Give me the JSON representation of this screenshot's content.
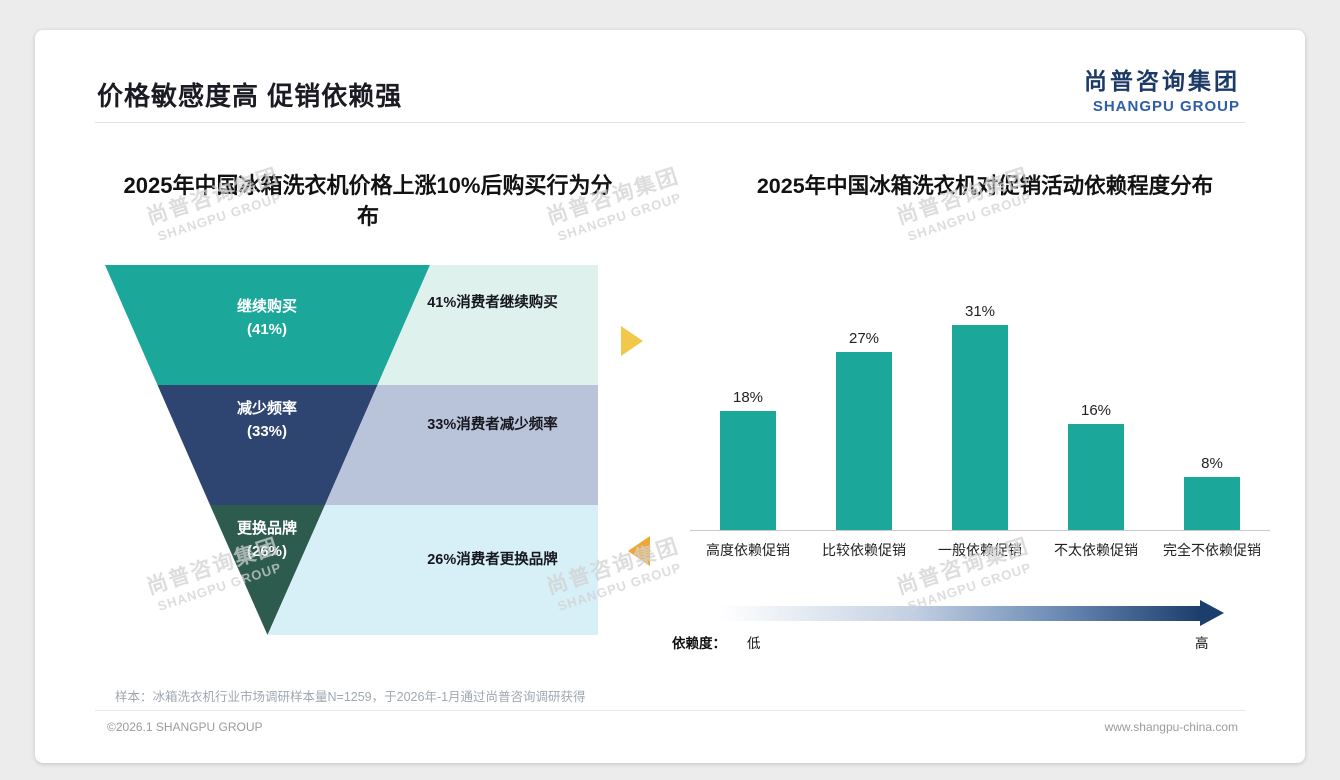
{
  "page": {
    "title": "价格敏感度高 促销依赖强",
    "logo": {
      "cn": "尚普咨询集团",
      "en": "SHANGPU GROUP"
    },
    "watermark": {
      "cn": "尚普咨询集团",
      "en": "SHANGPU GROUP"
    },
    "footer": {
      "sample_note": "样本：冰箱洗衣机行业市场调研样本量N=1259，于2026年-1月通过尚普咨询调研获得",
      "copyright": "©2026.1 SHANGPU GROUP",
      "website": "www.shangpu-china.com"
    },
    "accent_colors": {
      "right_arrow": "#F2C84B",
      "left_arrow": "#F0A636"
    }
  },
  "chart_data": [
    {
      "type": "funnel",
      "title": "2025年中国冰箱洗衣机价格上涨10%后购买行为分布",
      "stages": [
        {
          "label": "继续购买",
          "value": 41,
          "value_text": "(41%)",
          "desc": "41%消费者继续购买",
          "color": "#1BA89B",
          "desc_bg": "#DFF1ED"
        },
        {
          "label": "减少频率",
          "value": 33,
          "value_text": "(33%)",
          "desc": "33%消费者减少频率",
          "color": "#2F4571",
          "desc_bg": "#B9C4DB"
        },
        {
          "label": "更换品牌",
          "value": 26,
          "value_text": "(26%)",
          "desc": "26%消费者更换品牌",
          "color": "#2D5C4E",
          "desc_bg": "#D7EFF6"
        }
      ]
    },
    {
      "type": "bar",
      "title": "2025年中国冰箱洗衣机对促销活动依赖程度分布",
      "categories": [
        "高度依赖促销",
        "比较依赖促销",
        "一般依赖促销",
        "不太依赖促销",
        "完全不依赖促销"
      ],
      "values": [
        18,
        27,
        31,
        16,
        8
      ],
      "unit": "%",
      "bar_color": "#1BA89B",
      "ylim": [
        0,
        35
      ],
      "grid": false,
      "legend_axis": {
        "label": "依赖度：",
        "low": "低",
        "high": "高",
        "gradient_from": "#FFFFFF",
        "gradient_to": "#1C3E6C"
      }
    }
  ]
}
